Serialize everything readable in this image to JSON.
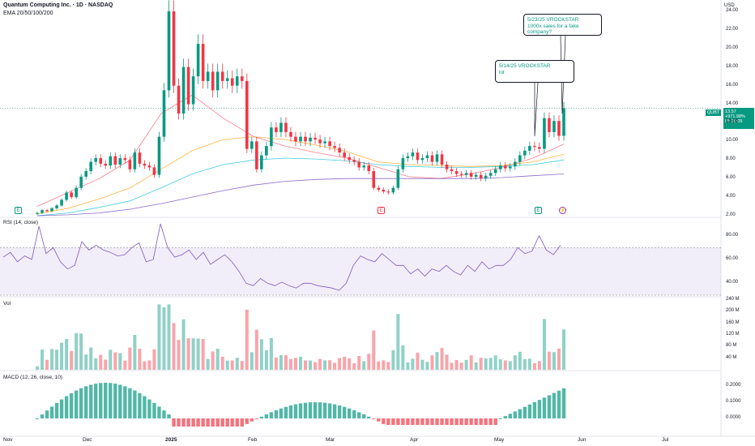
{
  "header": {
    "title": "Quantum Computing Inc. · 1D · NASDAQ",
    "indicator": "EMA 20/50/100/200",
    "currency": "USD"
  },
  "price_tag": {
    "symbol": "QUBT",
    "price": "13.57",
    "change": "+971.98%",
    "countdown": "05:28:05"
  },
  "callouts": [
    {
      "lines": [
        "5/14/25 VROCKSTAR",
        "lol"
      ]
    },
    {
      "lines": [
        "5/23/25 VROCKSTAR",
        "1000x sales for a fake",
        "company?"
      ]
    }
  ],
  "events": [
    {
      "glyph": "E",
      "color": "#089981"
    },
    {
      "glyph": "E",
      "color": "#f23645"
    },
    {
      "glyph": "E",
      "color": "#089981"
    },
    {
      "glyph": "⚡",
      "color": "#9c27b0"
    }
  ],
  "panes": {
    "rsi_title": "RSI (14, close)",
    "vol_title": "Vol",
    "macd_title": "MACD (12, 26, close, 10)"
  },
  "colors": {
    "up": "#089981",
    "down": "#f23645",
    "ema20": "#f7525f",
    "ema50": "#ff9800",
    "ema100": "#00bcd4",
    "ema200": "#673ab7",
    "rsi": "#7e57c2",
    "rsi_band": "#7e57c2"
  },
  "chart_data": [
    {
      "type": "candlestick",
      "title": "Quantum Computing Inc. · 1D · NASDAQ",
      "y_ticks": [
        "24.00",
        "22.00",
        "20.00",
        "18.00",
        "16.00",
        "14.00",
        "12.00",
        "10.00",
        "8.00",
        "6.00",
        "4.00",
        "2.00"
      ],
      "x_ticks": [
        "Nov",
        "Dec",
        "2025",
        "Feb",
        "Mar",
        "Apr",
        "May",
        "Jun",
        "Jul"
      ],
      "ylim": [
        2,
        24
      ],
      "close": [
        2.3,
        2.6,
        2.5,
        2.8,
        3.1,
        3.7,
        4.5,
        4.0,
        5.0,
        6.2,
        6.8,
        7.8,
        8.2,
        7.6,
        7.4,
        8.4,
        7.5,
        8.2,
        8.0,
        7.0,
        8.8,
        7.6,
        7.4,
        7.2,
        6.4,
        10.5,
        15.5,
        24.0,
        16.0,
        13.0,
        18.0,
        14.0,
        17.0,
        20.5,
        16.5,
        17.5,
        15.5,
        17.5,
        16.5,
        16.8,
        16.0,
        17.0,
        16.5,
        9.2,
        10.0,
        7.0,
        8.5,
        9.5,
        11.5,
        11.0,
        12.0,
        11.0,
        10.5,
        10.0,
        10.5,
        10.0,
        10.4,
        10.2,
        9.8,
        10.0,
        9.5,
        9.3,
        8.8,
        8.3,
        8.0,
        7.8,
        7.2,
        7.4,
        6.8,
        5.0,
        4.8,
        4.6,
        4.5,
        5.0,
        7.0,
        8.2,
        8.4,
        8.8,
        8.0,
        8.2,
        8.5,
        7.8,
        8.6,
        7.5,
        7.0,
        6.8,
        6.5,
        6.4,
        6.6,
        6.2,
        6.4,
        6.0,
        6.3,
        6.6,
        7.0,
        7.4,
        7.1,
        7.3,
        7.8,
        8.5,
        9.0,
        9.5,
        9.4,
        9.2,
        12.5,
        11.0,
        12.2,
        10.6,
        13.57
      ],
      "ema_series": [
        {
          "name": "EMA 20",
          "values": [
            3.0,
            4.5,
            6.0,
            8.0,
            13.0,
            15.0,
            12.5,
            10.5,
            9.5,
            8.8,
            8.2,
            7.2,
            6.2,
            6.0,
            6.5,
            7.2,
            8.2,
            9.7
          ]
        },
        {
          "name": "EMA 50",
          "values": [
            2.2,
            2.8,
            3.8,
            5.0,
            7.0,
            9.0,
            10.2,
            10.5,
            10.2,
            9.6,
            8.9,
            7.8,
            7.5,
            7.4,
            7.3,
            7.4,
            7.8,
            8.6
          ]
        },
        {
          "name": "EMA 100",
          "values": [
            2.0,
            2.3,
            2.9,
            3.6,
            5.0,
            6.5,
            7.5,
            8.0,
            8.2,
            8.1,
            7.9,
            7.5,
            7.3,
            7.2,
            7.2,
            7.3,
            7.5,
            8.0
          ]
        },
        {
          "name": "EMA 200",
          "values": [
            2.0,
            2.1,
            2.3,
            2.7,
            3.3,
            4.0,
            4.7,
            5.3,
            5.7,
            5.9,
            6.0,
            6.0,
            6.0,
            6.0,
            6.0,
            6.1,
            6.3,
            6.5
          ]
        }
      ]
    },
    {
      "type": "line",
      "title": "RSI (14, close)",
      "y_ticks": [
        "80.00",
        "60.00",
        "40.00"
      ],
      "ylim": [
        30,
        90
      ],
      "band": [
        30,
        70
      ],
      "values": [
        62,
        66,
        58,
        63,
        60,
        88,
        65,
        70,
        58,
        52,
        55,
        75,
        68,
        72,
        68,
        66,
        63,
        64,
        70,
        74,
        58,
        60,
        90,
        70,
        62,
        64,
        68,
        60,
        66,
        56,
        60,
        64,
        58,
        50,
        40,
        38,
        44,
        40,
        38,
        41,
        38,
        36,
        40,
        40,
        38,
        37,
        36,
        34,
        40,
        55,
        63,
        60,
        58,
        65,
        60,
        55,
        55,
        48,
        52,
        46,
        52,
        50,
        55,
        50,
        47,
        55,
        50,
        58,
        52,
        55,
        55,
        60,
        70,
        65,
        67,
        80,
        68,
        64,
        72
      ]
    },
    {
      "type": "bar",
      "title": "Vol",
      "y_ticks": [
        "240 M",
        "200 M",
        "160 M",
        "120 M",
        "80 M",
        "40 M"
      ],
      "ylim": [
        0,
        240
      ]
    },
    {
      "type": "bar",
      "title": "MACD (12, 26, close, 10)",
      "y_ticks": [
        "0.2000",
        "0.1000",
        "0.0000"
      ],
      "ylim": [
        -0.1,
        0.25
      ]
    }
  ]
}
